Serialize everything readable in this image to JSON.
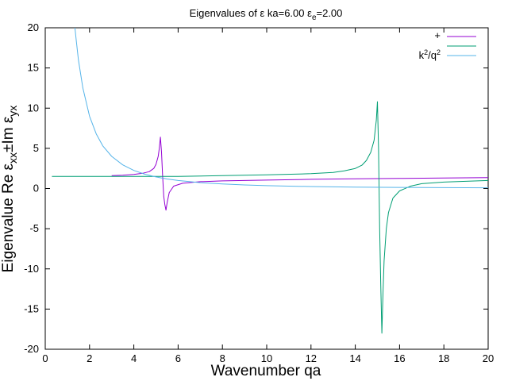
{
  "chart_data": {
    "type": "line",
    "title_parts": {
      "a": "Eigenvalues of ε ka=",
      "ka": "6.00",
      "b": " ε",
      "sub": "e",
      "c": "=",
      "eps": "2.00"
    },
    "xlabel": "Wavenumber qa",
    "ylabel_parts": {
      "a": "Eigenvalue Re ε",
      "sub1": "xx",
      "b": "±Im ε",
      "sub2": "yx"
    },
    "xlim": [
      0,
      20
    ],
    "ylim": [
      -20,
      20
    ],
    "x_ticks": [
      0,
      2,
      4,
      6,
      8,
      10,
      12,
      14,
      16,
      18,
      20
    ],
    "y_ticks": [
      -20,
      -15,
      -10,
      -5,
      0,
      5,
      10,
      15,
      20
    ],
    "grid": false,
    "legend_position": "top-right",
    "series": [
      {
        "name": "+",
        "color": "#9400d3",
        "x": [
          3.0,
          3.5,
          4.0,
          4.4,
          4.7,
          4.9,
          5.0,
          5.1,
          5.15,
          5.2,
          5.25,
          5.3,
          5.35,
          5.4,
          5.45,
          5.5,
          5.6,
          5.8,
          6.2,
          7.0,
          8.0,
          10.0,
          12.0,
          14.0,
          16.0,
          18.0,
          20.0
        ],
        "y": [
          1.6,
          1.65,
          1.75,
          1.9,
          2.1,
          2.5,
          3.0,
          4.0,
          5.0,
          6.4,
          4.5,
          1.5,
          -1.0,
          -2.0,
          -2.7,
          -1.8,
          -0.5,
          0.3,
          0.65,
          0.85,
          0.95,
          1.05,
          1.15,
          1.2,
          1.25,
          1.3,
          1.35
        ]
      },
      {
        "name": "",
        "color": "#009e73",
        "x": [
          0.3,
          1.0,
          2.0,
          3.0,
          4.0,
          5.0,
          5.3,
          5.4,
          6.0,
          8.0,
          10.0,
          12.0,
          13.0,
          13.5,
          14.0,
          14.3,
          14.5,
          14.7,
          14.85,
          14.95,
          15.0,
          15.05,
          15.1,
          15.15,
          15.2,
          15.25,
          15.3,
          15.4,
          15.5,
          15.7,
          16.0,
          16.5,
          17.0,
          18.0,
          19.0,
          20.0
        ],
        "y": [
          1.5,
          1.5,
          1.5,
          1.5,
          1.5,
          1.5,
          1.5,
          1.5,
          1.5,
          1.6,
          1.7,
          1.85,
          2.0,
          2.2,
          2.5,
          2.9,
          3.5,
          4.5,
          6.0,
          8.5,
          10.8,
          5.0,
          -5.0,
          -12.0,
          -18.0,
          -13.0,
          -9.0,
          -5.0,
          -3.0,
          -1.2,
          -0.3,
          0.3,
          0.6,
          0.8,
          0.9,
          1.0
        ]
      },
      {
        "name": "k²/q²",
        "color": "#56b4e9",
        "x": [
          1.34,
          1.4,
          1.5,
          1.7,
          2.0,
          2.3,
          2.6,
          3.0,
          3.5,
          4.0,
          4.5,
          5.0,
          5.5,
          6.0,
          7.0,
          8.0,
          9.0,
          10.0,
          11.0,
          12.0,
          14.0,
          16.0,
          18.0,
          20.0
        ],
        "y": [
          20.0,
          18.4,
          16.0,
          12.5,
          9.0,
          6.8,
          5.3,
          4.0,
          2.94,
          2.25,
          1.78,
          1.44,
          1.19,
          1.0,
          0.73,
          0.56,
          0.44,
          0.36,
          0.3,
          0.25,
          0.18,
          0.14,
          0.11,
          0.09
        ]
      }
    ],
    "legend": [
      {
        "label": "+",
        "color": "#9400d3"
      },
      {
        "label": "",
        "color": "#009e73"
      },
      {
        "label_base": "k",
        "label_sup1": "2",
        "label_mid": "/q",
        "label_sup2": "2",
        "color": "#56b4e9"
      }
    ]
  }
}
